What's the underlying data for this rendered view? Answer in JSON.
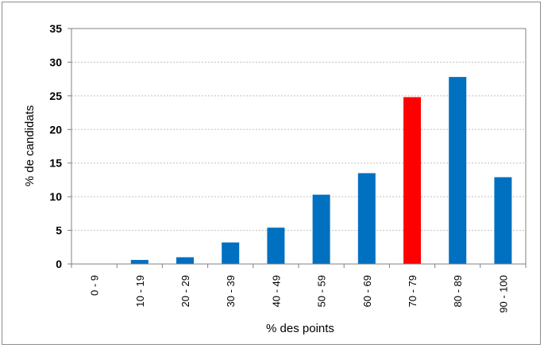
{
  "chart_data": {
    "type": "bar",
    "title": "",
    "xlabel": "% des points",
    "ylabel": "% de candidats",
    "ylim": [
      0,
      35
    ],
    "yticks": [
      0,
      5,
      10,
      15,
      20,
      25,
      30,
      35
    ],
    "grid": true,
    "legend": "none",
    "categories": [
      "0 - 9",
      "10 - 19",
      "20 - 29",
      "30 - 39",
      "40 - 49",
      "50 - 59",
      "60 - 69",
      "70 - 79",
      "80 - 89",
      "90 - 100"
    ],
    "values": [
      0,
      0.6,
      1.0,
      3.2,
      5.4,
      10.3,
      13.5,
      24.8,
      27.8,
      12.9
    ],
    "highlight_index": 7,
    "colors": {
      "bar": "#0070c0",
      "highlight": "#ff0000",
      "grid": "#bfbfbf",
      "axis": "#808080"
    }
  }
}
